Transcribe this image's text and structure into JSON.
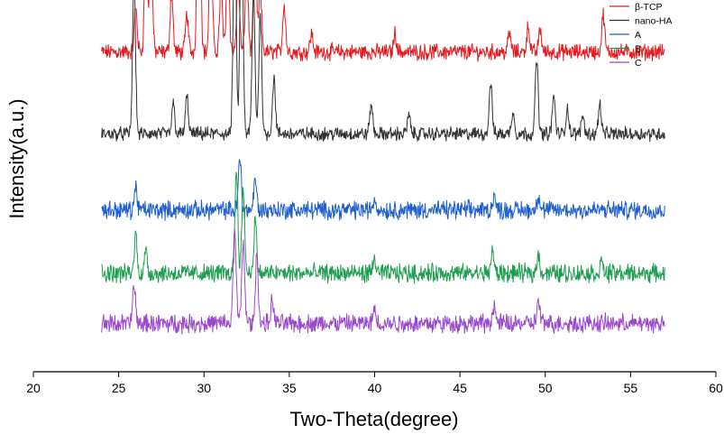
{
  "chart_data": {
    "type": "line",
    "title": "",
    "xlabel": "Two-Theta(degree)",
    "ylabel": "Intensity(a.u.)",
    "xlim": [
      20,
      60
    ],
    "xticks": [
      20,
      25,
      30,
      35,
      40,
      45,
      50,
      55,
      60
    ],
    "y_ticks_shown": false,
    "grid": false,
    "legend_position": "top-right",
    "legend": [
      "β-TCP",
      "nano-HA",
      "A",
      "B",
      "C"
    ],
    "x_range_data": [
      24,
      57
    ],
    "series": [
      {
        "name": "β-TCP",
        "color": "#e8191e",
        "baseline": 0.86,
        "noise": 0.035,
        "peaks": [
          [
            26.0,
            0.12
          ],
          [
            26.6,
            0.32
          ],
          [
            26.9,
            0.28
          ],
          [
            28.1,
            0.16
          ],
          [
            29.0,
            0.1
          ],
          [
            29.7,
            0.9
          ],
          [
            30.4,
            0.34
          ],
          [
            31.0,
            0.18
          ],
          [
            31.4,
            0.28
          ],
          [
            32.0,
            0.2
          ],
          [
            32.5,
            0.24
          ],
          [
            33.0,
            0.28
          ],
          [
            33.3,
            0.16
          ],
          [
            34.7,
            0.13
          ],
          [
            36.3,
            0.05
          ],
          [
            41.2,
            0.05
          ],
          [
            47.9,
            0.05
          ],
          [
            49.0,
            0.07
          ],
          [
            49.7,
            0.06
          ],
          [
            53.4,
            0.1
          ]
        ]
      },
      {
        "name": "nano-HA",
        "color": "#333333",
        "baseline": 0.64,
        "noise": 0.03,
        "peaks": [
          [
            25.9,
            0.42
          ],
          [
            28.2,
            0.08
          ],
          [
            29.0,
            0.1
          ],
          [
            31.8,
            0.62
          ],
          [
            32.2,
            0.64
          ],
          [
            32.9,
            0.38
          ],
          [
            33.3,
            0.32
          ],
          [
            34.1,
            0.15
          ],
          [
            39.8,
            0.08
          ],
          [
            42.0,
            0.05
          ],
          [
            46.8,
            0.14
          ],
          [
            48.1,
            0.06
          ],
          [
            49.5,
            0.2
          ],
          [
            50.5,
            0.1
          ],
          [
            51.3,
            0.07
          ],
          [
            52.2,
            0.05
          ],
          [
            53.2,
            0.08
          ]
        ]
      },
      {
        "name": "A",
        "color": "#1f5fcf",
        "baseline": 0.435,
        "noise": 0.04,
        "peaks": [
          [
            26.0,
            0.06
          ],
          [
            32.1,
            0.14
          ],
          [
            33.0,
            0.08
          ],
          [
            40.0,
            0.03
          ],
          [
            47.0,
            0.04
          ],
          [
            49.6,
            0.04
          ]
        ]
      },
      {
        "name": "B",
        "color": "#1e9e50",
        "baseline": 0.265,
        "noise": 0.04,
        "peaks": [
          [
            26.0,
            0.1
          ],
          [
            26.6,
            0.06
          ],
          [
            31.9,
            0.28
          ],
          [
            32.3,
            0.22
          ],
          [
            33.0,
            0.14
          ],
          [
            40.0,
            0.04
          ],
          [
            46.9,
            0.06
          ],
          [
            49.6,
            0.05
          ],
          [
            53.3,
            0.03
          ]
        ]
      },
      {
        "name": "C",
        "color": "#9a48d0",
        "baseline": 0.13,
        "noise": 0.04,
        "peaks": [
          [
            25.9,
            0.1
          ],
          [
            31.8,
            0.26
          ],
          [
            32.3,
            0.22
          ],
          [
            33.1,
            0.18
          ],
          [
            34.0,
            0.06
          ],
          [
            40.0,
            0.04
          ],
          [
            47.0,
            0.05
          ],
          [
            49.6,
            0.06
          ]
        ]
      }
    ]
  }
}
